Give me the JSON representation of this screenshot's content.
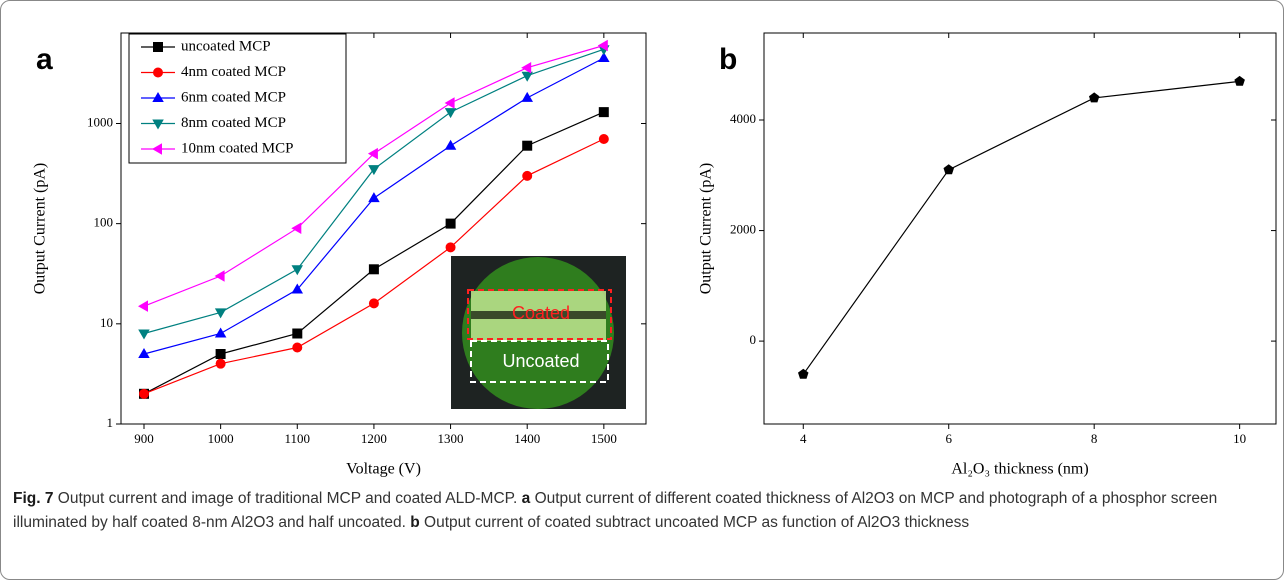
{
  "chart_data": [
    {
      "type": "line",
      "panel_label": "a",
      "xlabel": "Voltage (V)",
      "ylabel": "Output Current (pA)",
      "x": [
        900,
        1000,
        1100,
        1200,
        1300,
        1400,
        1500
      ],
      "xlim": [
        870,
        1555
      ],
      "xticks": [
        900,
        1000,
        1100,
        1200,
        1300,
        1400,
        1500
      ],
      "ylim": [
        1,
        8000
      ],
      "yticks": [
        1,
        10,
        100,
        1000
      ],
      "log_y": true,
      "legend": "upper left",
      "series": [
        {
          "name": "uncoated MCP",
          "color": "#000000",
          "marker": "square",
          "values": [
            2,
            5,
            8,
            35,
            100,
            600,
            1300
          ]
        },
        {
          "name": "4nm coated MCP",
          "color": "#ff0000",
          "marker": "circle",
          "values": [
            2,
            4,
            5.8,
            16,
            58,
            300,
            700
          ]
        },
        {
          "name": "6nm coated MCP",
          "color": "#0000ff",
          "marker": "triangle-up",
          "values": [
            5,
            8,
            22,
            180,
            600,
            1800,
            4500
          ]
        },
        {
          "name": "8nm coated MCP",
          "color": "#008080",
          "marker": "triangle-down",
          "values": [
            8,
            13,
            35,
            350,
            1300,
            3000,
            5500
          ]
        },
        {
          "name": "10nm coated MCP",
          "color": "#ff00ff",
          "marker": "triangle-left",
          "values": [
            15,
            30,
            90,
            500,
            1600,
            3600,
            6000
          ]
        }
      ],
      "inset_labels": [
        "Coated",
        "Uncoated"
      ]
    },
    {
      "type": "line",
      "panel_label": "b",
      "xlabel": "Al₂O₃ thickness (nm)",
      "ylabel": "Output Current (pA)",
      "x": [
        4,
        6,
        8,
        10
      ],
      "xlim": [
        3.46,
        10.5
      ],
      "xticks": [
        4,
        6,
        8,
        10
      ],
      "ylim": [
        -1500,
        5575
      ],
      "yticks": [
        0,
        2000,
        4000
      ],
      "log_y": false,
      "series": [
        {
          "color": "#000000",
          "marker": "pentagon",
          "values": [
            -600,
            3100,
            4400,
            4700
          ]
        }
      ]
    }
  ],
  "caption": {
    "label": "Fig. 7",
    "title": "Output current and image of traditional MCP and coated ALD-MCP.",
    "a_label": "a",
    "a_text": "Output current of different coated thickness of Al2O3 on MCP and photograph of a phosphor screen illuminated by half coated 8-nm Al2O3 and half uncoated.",
    "b_label": "b",
    "b_text": "Output current of coated subtract uncoated MCP as function of Al2O3 thickness"
  }
}
